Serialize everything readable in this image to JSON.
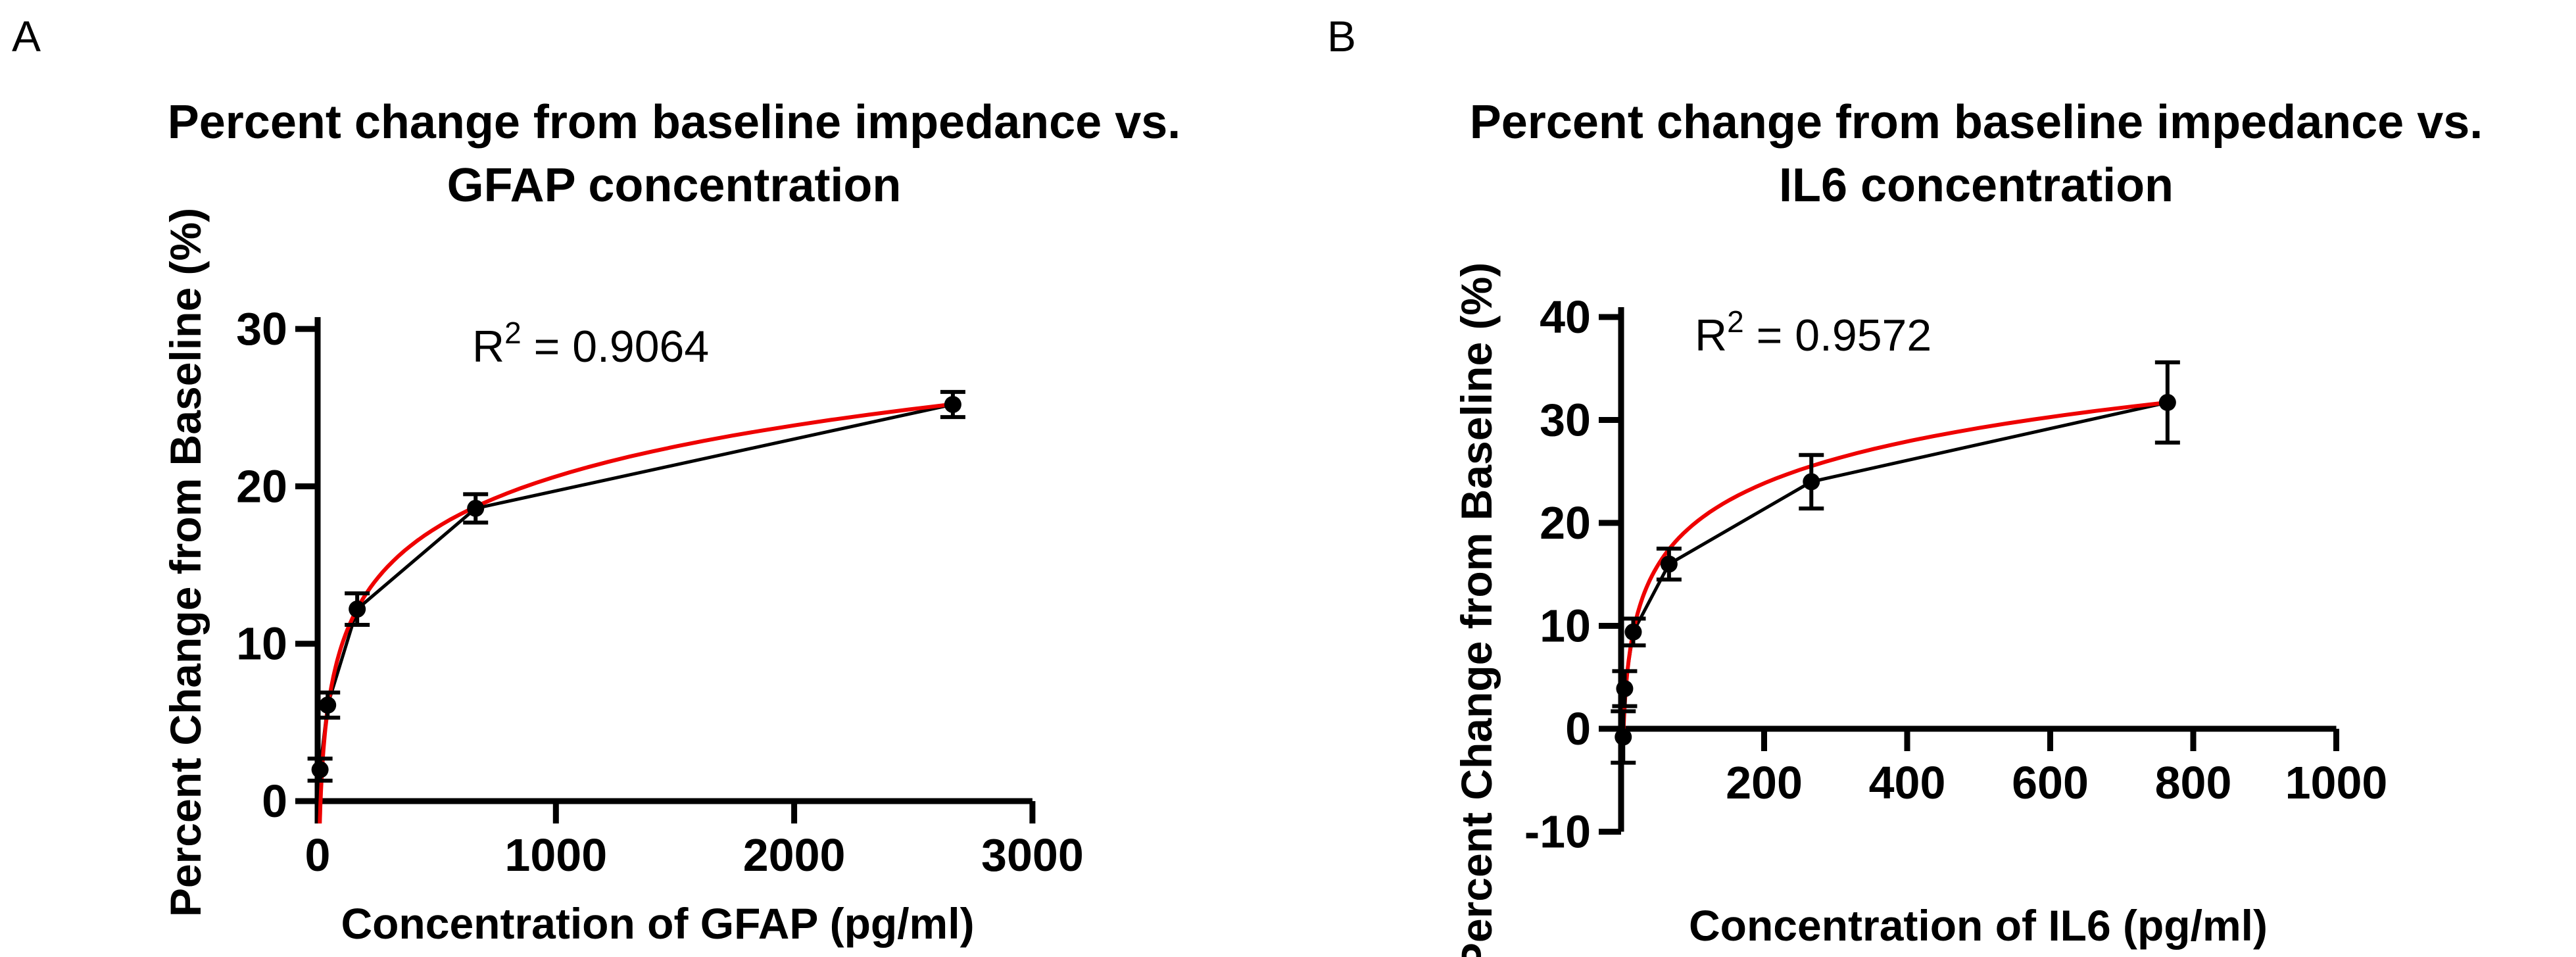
{
  "figure": {
    "background": "#ffffff",
    "fit_color": "#ee0000",
    "data_color": "#000000",
    "panel_letters": [
      "A",
      "B"
    ]
  },
  "chart_data": [
    {
      "type": "scatter",
      "panel": "A",
      "title_line1": "Percent change from baseline impedance vs.",
      "title_line2": "GFAP concentration",
      "r2": {
        "base": "R",
        "exp": "2",
        "rest": " = 0.9064"
      },
      "xlabel": "Concentration of GFAP (pg/ml)",
      "ylabel": "Percent Change from Baseline (%)",
      "xlim": [
        0,
        3000
      ],
      "ylim": [
        0,
        30
      ],
      "x_ticks": [
        0,
        1000,
        2000,
        3000
      ],
      "y_ticks": [
        0,
        10,
        20,
        30
      ],
      "grid": false,
      "legend": "none",
      "points": [
        {
          "x": 10,
          "y": 2.0,
          "err": 0.7
        },
        {
          "x": 42,
          "y": 6.1,
          "err": 0.8
        },
        {
          "x": 166,
          "y": 12.2,
          "err": 1.0
        },
        {
          "x": 663,
          "y": 18.6,
          "err": 0.9
        },
        {
          "x": 2666,
          "y": 25.2,
          "err": 0.8
        }
      ],
      "fit": {
        "type": "logarithmic",
        "a": 4.68,
        "b": -11.7,
        "x_start": 9,
        "x_end": 2666
      }
    },
    {
      "type": "scatter",
      "panel": "B",
      "title_line1": "Percent change from baseline impedance vs.",
      "title_line2": "IL6 concentration",
      "r2": {
        "base": "R",
        "exp": "2",
        "rest": " = 0.9572"
      },
      "xlabel": "Concentration of IL6 (pg/ml)",
      "ylabel": "Percent Change from Baseline (%)",
      "xlim": [
        0,
        1000
      ],
      "ylim": [
        -10,
        40
      ],
      "x_ticks": [
        200,
        400,
        600,
        800,
        1000
      ],
      "y_ticks": [
        -10,
        0,
        10,
        20,
        30,
        40
      ],
      "grid": false,
      "legend": "none",
      "points": [
        {
          "x": 3,
          "y": -0.8,
          "err": 2.5
        },
        {
          "x": 5,
          "y": 3.9,
          "err": 1.7
        },
        {
          "x": 17,
          "y": 9.4,
          "err": 1.3
        },
        {
          "x": 67,
          "y": 16.0,
          "err": 1.5
        },
        {
          "x": 266,
          "y": 24.0,
          "err": 2.6
        },
        {
          "x": 764,
          "y": 31.7,
          "err": 3.9
        }
      ],
      "fit": {
        "type": "logarithmic",
        "a": 5.86,
        "b": -7.2,
        "x_start": 2.8,
        "x_end": 764
      }
    }
  ]
}
